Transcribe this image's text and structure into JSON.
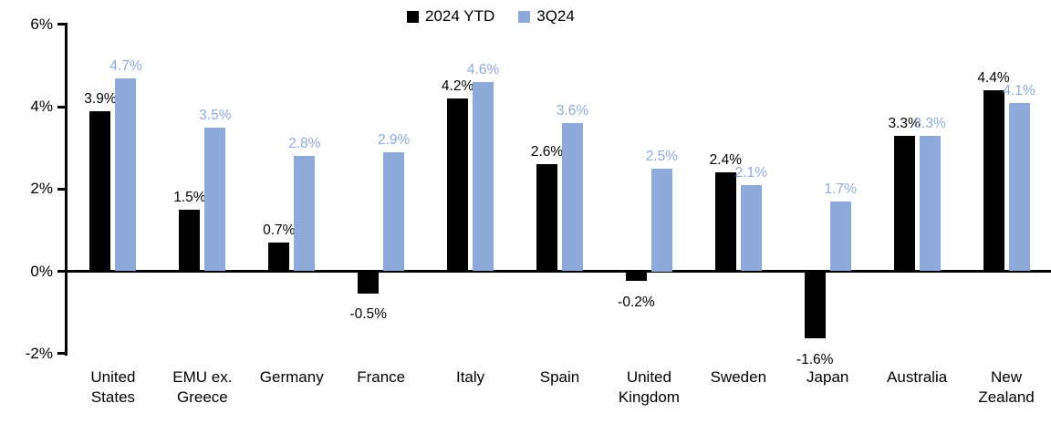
{
  "chart_data": {
    "type": "bar",
    "title": "",
    "xlabel": "",
    "ylabel": "",
    "grid": false,
    "legend_position": "top-center",
    "ylim": [
      -2,
      6
    ],
    "yticks": [
      {
        "value": 6,
        "label": "6%"
      },
      {
        "value": 4,
        "label": "4%"
      },
      {
        "value": 2,
        "label": "2%"
      },
      {
        "value": 0,
        "label": "0%"
      },
      {
        "value": -2,
        "label": "-2%"
      }
    ],
    "categories": [
      "United States",
      "EMU ex. Greece",
      "Germany",
      "France",
      "Italy",
      "Spain",
      "United Kingdom",
      "Sweden",
      "Japan",
      "Australia",
      "New Zealand"
    ],
    "category_label_lines": [
      [
        "United",
        "States"
      ],
      [
        "EMU ex.",
        "Greece"
      ],
      [
        "Germany"
      ],
      [
        "France"
      ],
      [
        "Italy"
      ],
      [
        "Spain"
      ],
      [
        "United",
        "Kingdom"
      ],
      [
        "Sweden"
      ],
      [
        "Japan"
      ],
      [
        "Australia"
      ],
      [
        "New",
        "Zealand"
      ]
    ],
    "series": [
      {
        "name": "2024 YTD",
        "color": "#000000",
        "values": [
          3.9,
          1.5,
          0.7,
          -0.5,
          4.2,
          2.6,
          -0.2,
          2.4,
          -1.6,
          3.3,
          4.4
        ],
        "labels": [
          "3.9%",
          "1.5%",
          "0.7%",
          "-0.5%",
          "4.2%",
          "2.6%",
          "-0.2%",
          "2.4%",
          "-1.6%",
          "3.3%",
          "4.4%"
        ]
      },
      {
        "name": "3Q24",
        "color": "#8EAADB",
        "values": [
          4.7,
          3.5,
          2.8,
          2.9,
          4.6,
          3.6,
          2.5,
          2.1,
          1.7,
          3.3,
          4.1
        ],
        "labels": [
          "4.7%",
          "3.5%",
          "2.8%",
          "2.9%",
          "4.6%",
          "3.6%",
          "2.5%",
          "2.1%",
          "1.7%",
          "3.3%",
          "4.1%"
        ]
      }
    ],
    "colors": {
      "series1": "#000000",
      "series2": "#8EAADB",
      "axis": "#000000",
      "background": "#ffffff"
    }
  }
}
